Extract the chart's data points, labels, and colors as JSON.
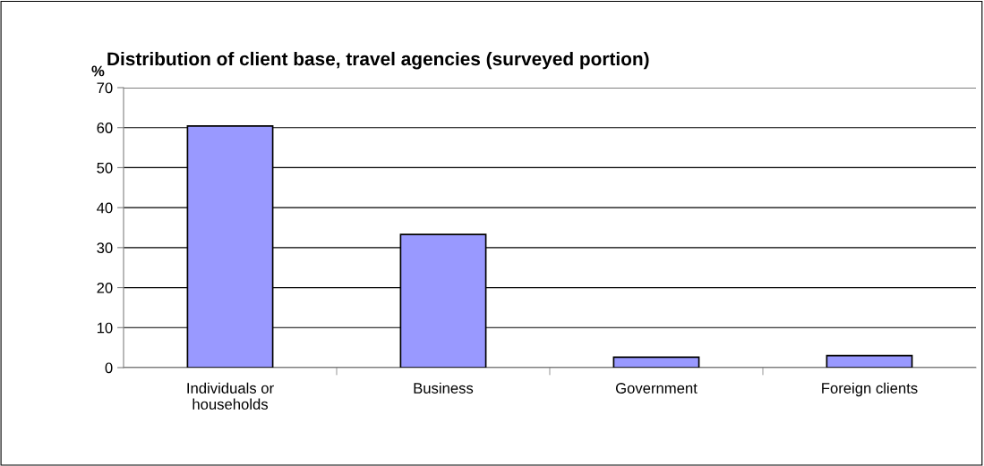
{
  "chart_data": {
    "type": "bar",
    "title": "Distribution of client base, travel agencies (surveyed portion)",
    "ylabel": "%",
    "categories": [
      "Individuals or\nhouseholds",
      "Business",
      "Government",
      "Foreign clients"
    ],
    "values": [
      60.4,
      33.3,
      2.6,
      3.0
    ],
    "color": "#9999ff",
    "ylim": [
      0,
      70
    ],
    "yticks": [
      0,
      10,
      20,
      30,
      40,
      50,
      60,
      70
    ],
    "grid": "y",
    "legend": false
  }
}
